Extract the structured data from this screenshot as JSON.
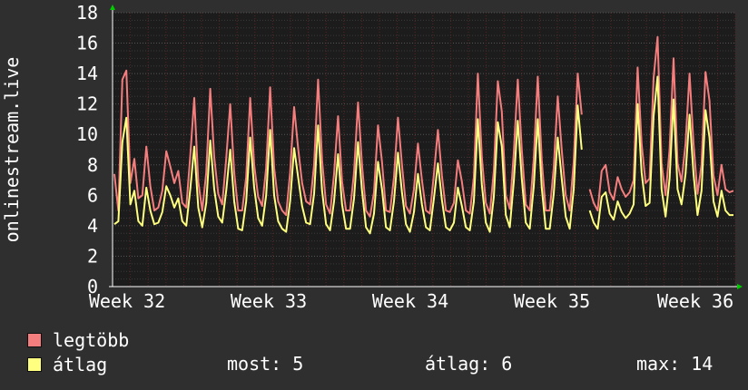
{
  "chart_data": {
    "type": "line",
    "ylabel": "onlinestream.live",
    "ylim": [
      0,
      18
    ],
    "yticks": [
      "0",
      "2",
      "4",
      "6",
      "8",
      "10",
      "12",
      "14",
      "16",
      "18"
    ],
    "xticks": [
      "Week 32",
      "Week 33",
      "Week 34",
      "Week 35",
      "Week 36"
    ],
    "grid": true,
    "colors": {
      "background": "#2f2f2f",
      "plot": "#1c1c1c",
      "grid": "#555555",
      "axis_arrow": "#00cc00"
    },
    "series": [
      {
        "name": "legtöbb",
        "color": "#f47e7e",
        "values": [
          7.4,
          5.0,
          13.6,
          14.2,
          6.8,
          8.4,
          5.8,
          6.0,
          9.2,
          6.6,
          5.0,
          5.2,
          6.3,
          8.9,
          7.9,
          6.8,
          7.6,
          5.5,
          5.2,
          8.6,
          12.4,
          6.9,
          5.0,
          7.5,
          13.0,
          8.5,
          6.1,
          5.4,
          8.4,
          12.0,
          7.5,
          5.0,
          5.0,
          7.2,
          12.4,
          8.0,
          5.9,
          5.3,
          7.8,
          13.1,
          7.8,
          5.6,
          5.0,
          4.7,
          7.5,
          11.8,
          9.1,
          6.8,
          5.6,
          5.4,
          8.0,
          13.6,
          8.3,
          5.4,
          4.8,
          7.4,
          11.2,
          6.9,
          5.0,
          5.0,
          7.5,
          12.1,
          8.0,
          5.0,
          4.6,
          6.2,
          10.6,
          8.2,
          5.0,
          4.9,
          7.2,
          11.1,
          8.0,
          5.3,
          4.8,
          6.4,
          9.4,
          7.0,
          5.0,
          4.8,
          7.4,
          10.3,
          7.3,
          5.0,
          4.9,
          5.5,
          8.3,
          6.9,
          5.0,
          4.8,
          7.2,
          14.0,
          8.5,
          5.5,
          4.8,
          7.6,
          13.5,
          11.5,
          6.0,
          5.1,
          8.8,
          13.6,
          9.0,
          5.4,
          5.0,
          8.4,
          13.8,
          8.3,
          5.0,
          5.0,
          7.8,
          12.5,
          9.0,
          6.0,
          5.0,
          8.2,
          14.0,
          11.3,
          null,
          6.4,
          5.5,
          5.0,
          7.6,
          8.0,
          6.2,
          5.7,
          7.2,
          6.4,
          5.9,
          6.2,
          7.0,
          14.4,
          9.4,
          6.8,
          7.1,
          13.7,
          16.4,
          8.1,
          6.0,
          9.0,
          15.0,
          8.1,
          6.9,
          9.4,
          14.0,
          9.4,
          6.1,
          8.0,
          14.1,
          12.2,
          7.3,
          6.0,
          8.0,
          6.4,
          6.2,
          6.3
        ]
      },
      {
        "name": "átlag",
        "color": "#ffff80",
        "values": [
          4.1,
          4.3,
          9.5,
          11.1,
          5.4,
          6.3,
          4.3,
          4.0,
          6.5,
          5.0,
          4.1,
          4.2,
          4.9,
          6.6,
          6.0,
          5.2,
          5.8,
          4.3,
          4.0,
          6.4,
          9.2,
          5.2,
          3.9,
          5.5,
          9.6,
          6.4,
          4.6,
          4.2,
          6.3,
          9.0,
          5.6,
          3.8,
          3.7,
          5.6,
          9.8,
          6.5,
          4.5,
          4.0,
          6.0,
          10.3,
          6.0,
          4.3,
          3.8,
          3.6,
          5.6,
          9.1,
          7.2,
          5.3,
          4.2,
          4.1,
          6.1,
          10.6,
          6.3,
          4.1,
          3.7,
          5.6,
          8.7,
          5.4,
          3.8,
          3.8,
          5.8,
          9.5,
          6.3,
          3.9,
          3.5,
          4.8,
          8.2,
          6.4,
          3.9,
          3.7,
          5.6,
          8.8,
          6.2,
          4.1,
          3.6,
          4.9,
          7.4,
          5.4,
          3.9,
          3.7,
          5.8,
          8.1,
          5.7,
          3.9,
          3.7,
          4.2,
          6.5,
          5.3,
          3.9,
          3.7,
          5.6,
          11.0,
          6.7,
          4.2,
          3.6,
          5.9,
          10.8,
          9.2,
          4.7,
          3.9,
          6.9,
          10.9,
          7.1,
          4.2,
          3.8,
          6.6,
          11.0,
          6.5,
          3.8,
          3.8,
          6.1,
          9.8,
          7.1,
          4.6,
          3.8,
          6.4,
          11.9,
          9.0,
          null,
          5.0,
          4.2,
          3.8,
          5.9,
          6.2,
          4.8,
          4.4,
          5.6,
          4.9,
          4.5,
          4.8,
          5.4,
          12.0,
          7.5,
          5.3,
          5.5,
          11.2,
          13.8,
          6.4,
          4.6,
          7.1,
          12.3,
          6.4,
          5.4,
          7.4,
          11.3,
          7.4,
          4.7,
          6.3,
          11.6,
          9.8,
          5.6,
          4.6,
          6.3,
          5.0,
          4.7,
          4.7
        ]
      }
    ]
  },
  "legend": {
    "max_label": "legtöbb",
    "avg_label": "átlag",
    "now_text": "most: 5",
    "avg_text": "átlag: 6",
    "max_text": "max: 14"
  }
}
